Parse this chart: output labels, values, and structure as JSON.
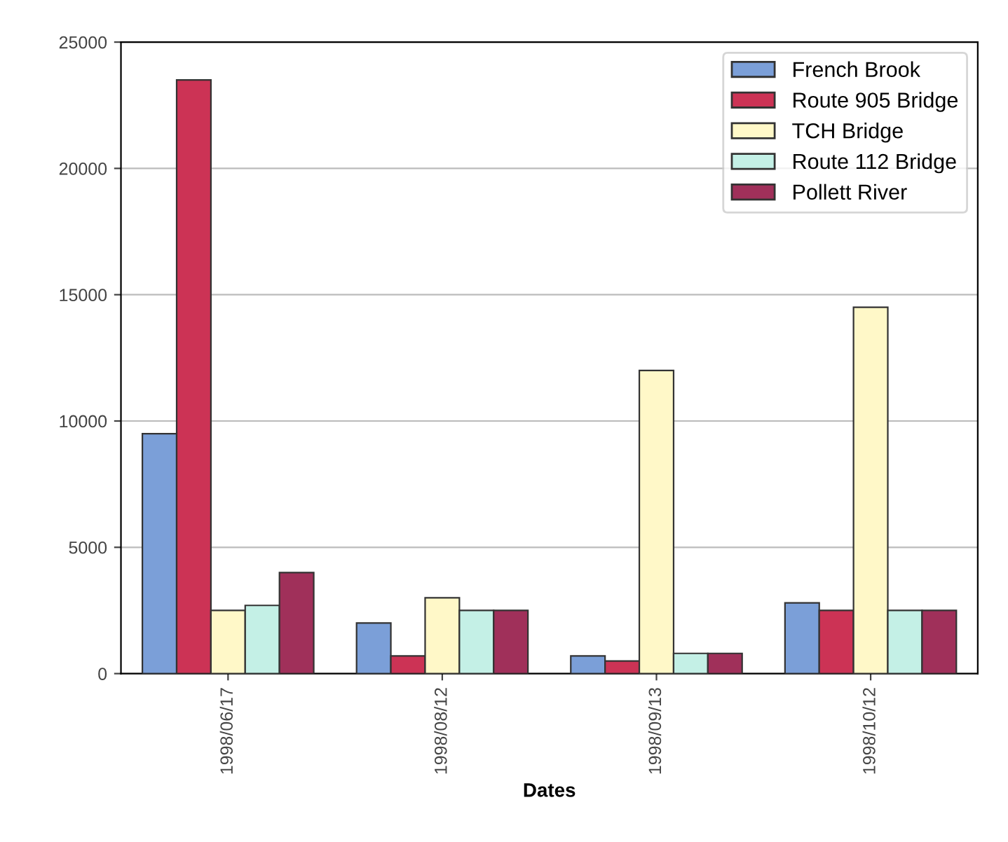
{
  "chart_data": {
    "type": "bar",
    "xlabel": "Dates",
    "categories": [
      "1998/06/17",
      "1998/08/12",
      "1998/09/13",
      "1998/10/12"
    ],
    "series": [
      {
        "name": "French Brook",
        "color": "#7b9fd8",
        "values": [
          9500,
          2000,
          700,
          2800
        ]
      },
      {
        "name": "Route 905 Bridge",
        "color": "#cc3355",
        "values": [
          23500,
          700,
          500,
          2500
        ]
      },
      {
        "name": "TCH Bridge",
        "color": "#fff8c8",
        "values": [
          2500,
          3000,
          12000,
          14500
        ]
      },
      {
        "name": "Route 112 Bridge",
        "color": "#c4f0e6",
        "values": [
          2700,
          2500,
          800,
          2500
        ]
      },
      {
        "name": "Pollett River",
        "color": "#a0305a",
        "values": [
          4000,
          2500,
          800,
          2500
        ]
      }
    ],
    "ylim": [
      0,
      25000
    ],
    "yticks": [
      0,
      5000,
      10000,
      15000,
      20000,
      25000
    ],
    "grid": "y",
    "legend": "top right"
  }
}
